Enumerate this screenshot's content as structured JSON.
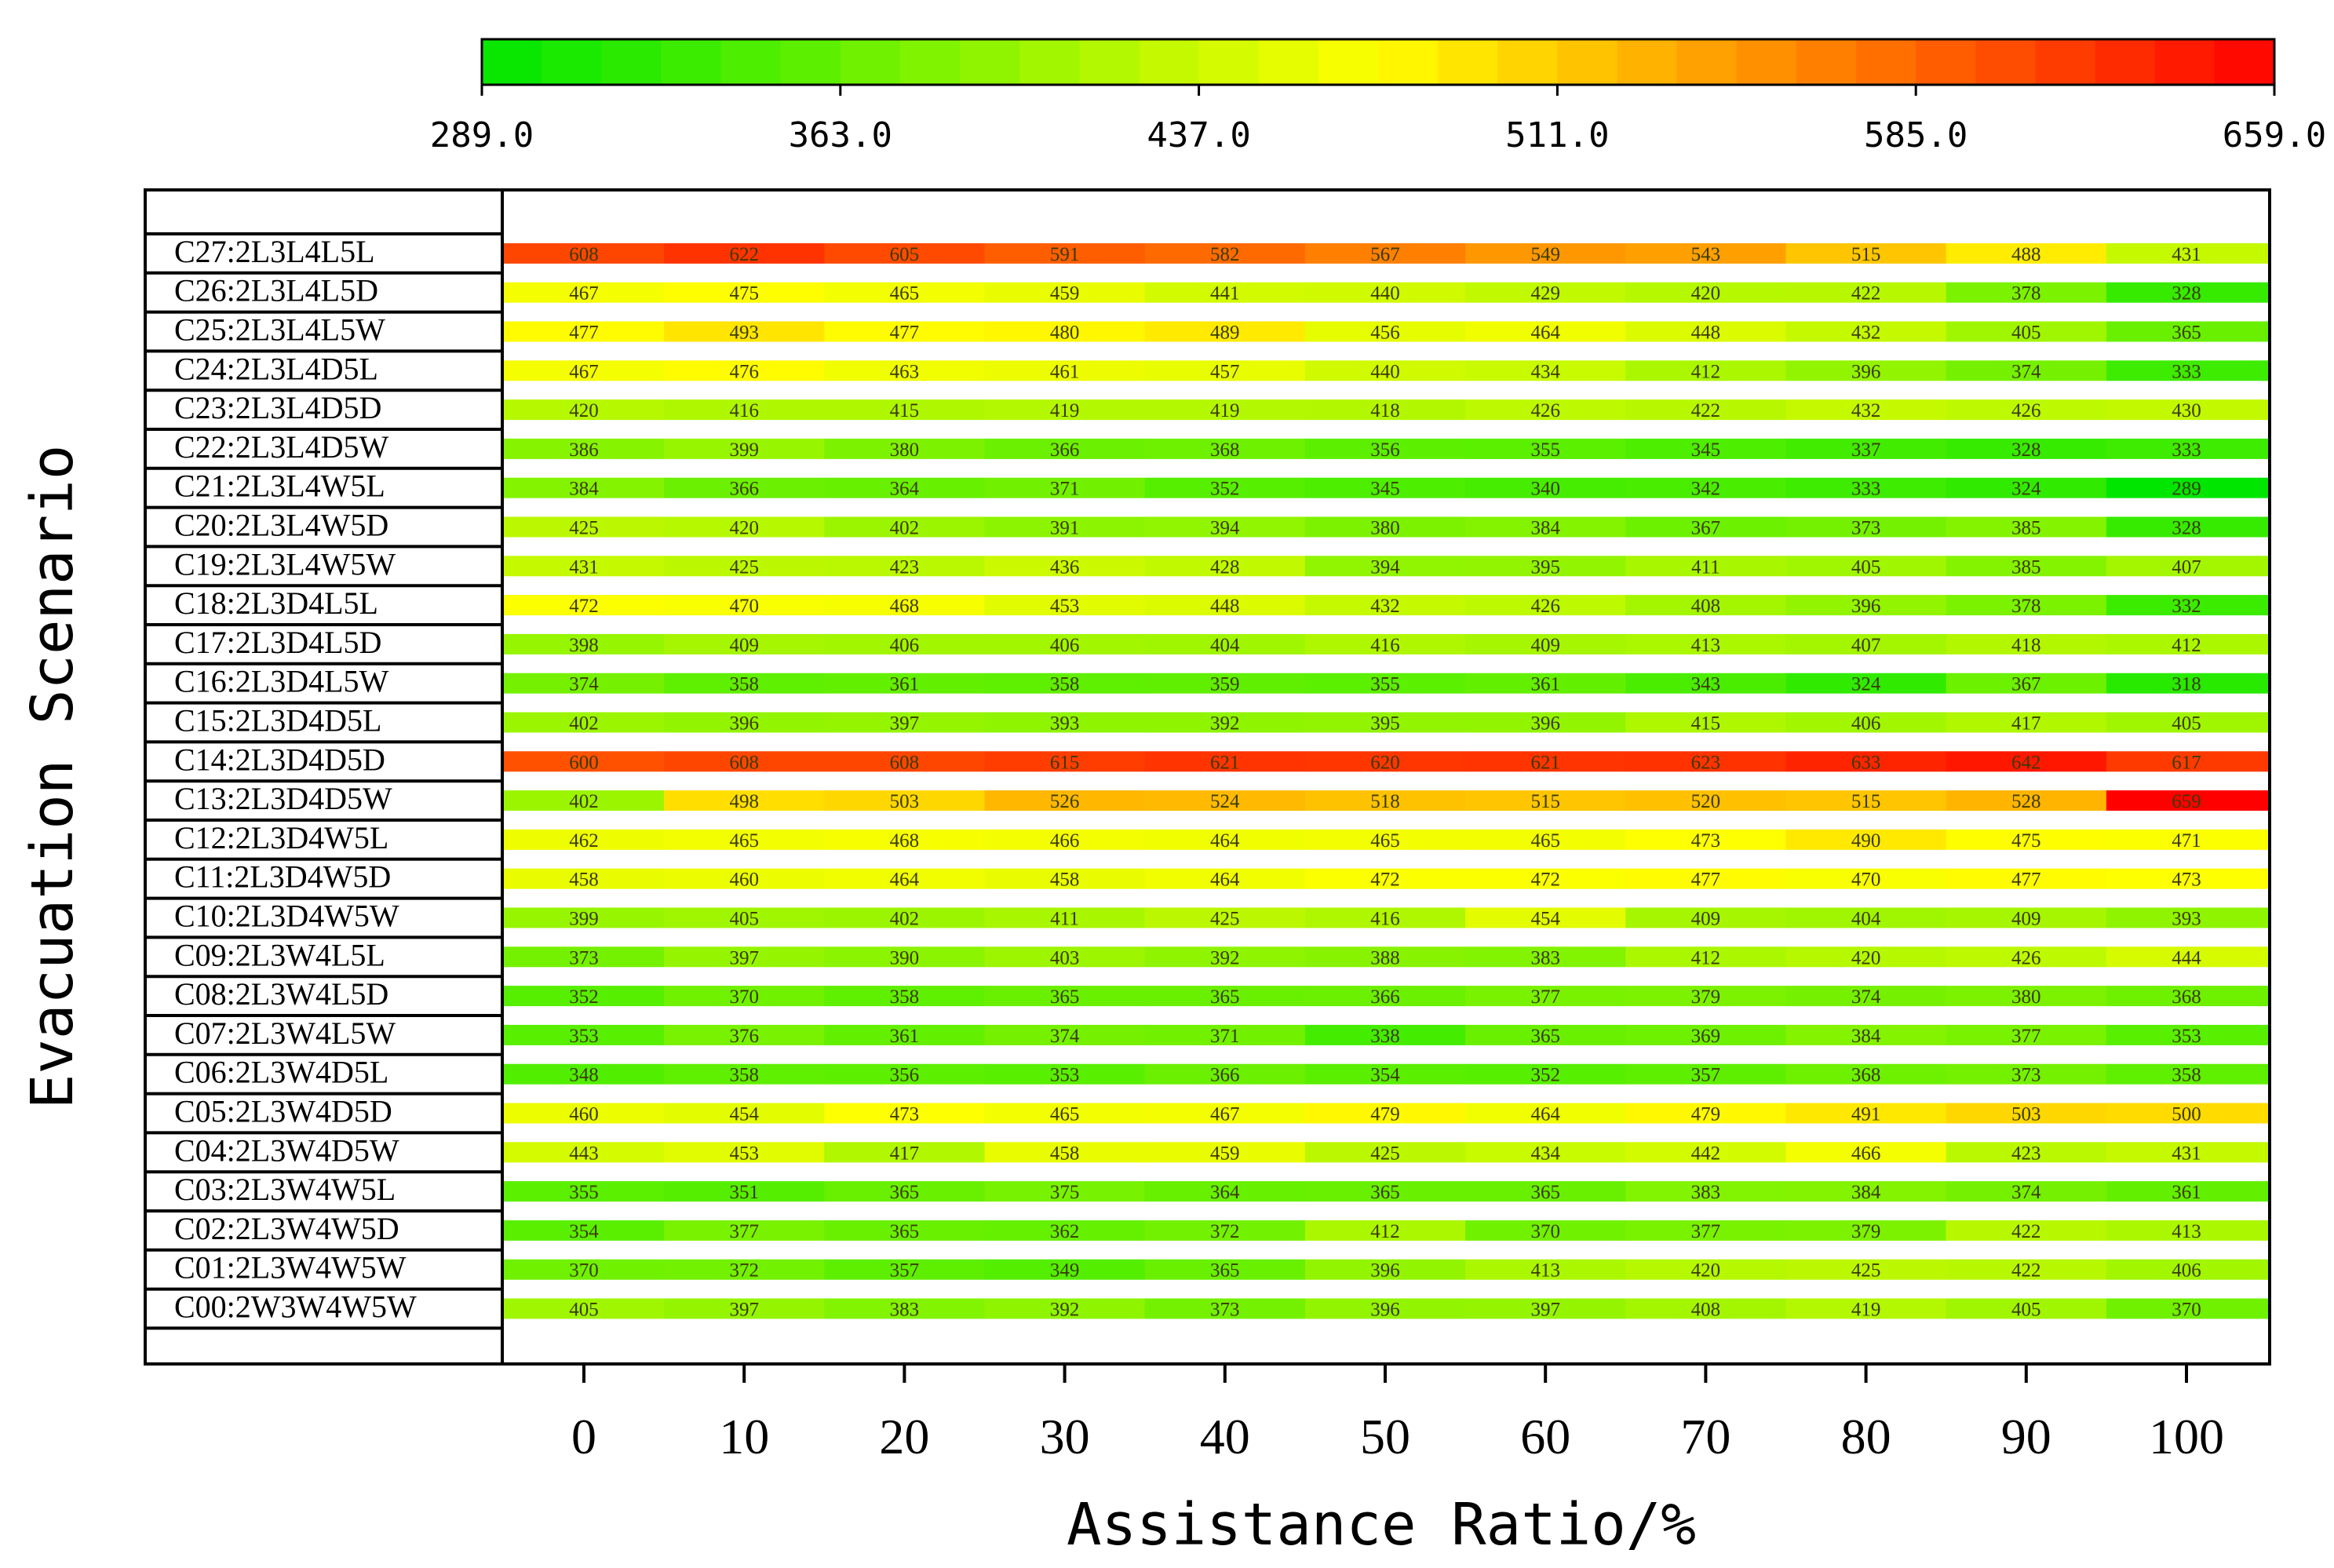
{
  "chart_data": {
    "type": "heatmap",
    "xlabel": "Assistance Ratio/%",
    "ylabel": "Evacuation Scenario",
    "x": [
      0,
      10,
      20,
      30,
      40,
      50,
      60,
      70,
      80,
      90,
      100
    ],
    "colorbar": {
      "min": 289.0,
      "max": 659.0,
      "ticks": [
        "289.0",
        "363.0",
        "437.0",
        "511.0",
        "585.0",
        "659.0"
      ],
      "colors": [
        "#00e600",
        "#ffff00",
        "#ff0000"
      ]
    },
    "rows": [
      {
        "label": "C27:2L3L4L5L",
        "values": [
          608,
          622,
          605,
          591,
          582,
          567,
          549,
          543,
          515,
          488,
          431
        ]
      },
      {
        "label": "C26:2L3L4L5D",
        "values": [
          467,
          475,
          465,
          459,
          441,
          440,
          429,
          420,
          422,
          378,
          328
        ]
      },
      {
        "label": "C25:2L3L4L5W",
        "values": [
          477,
          493,
          477,
          480,
          489,
          456,
          464,
          448,
          432,
          405,
          365
        ]
      },
      {
        "label": "C24:2L3L4D5L",
        "values": [
          467,
          476,
          463,
          461,
          457,
          440,
          434,
          412,
          396,
          374,
          333
        ]
      },
      {
        "label": "C23:2L3L4D5D",
        "values": [
          420,
          416,
          415,
          419,
          419,
          418,
          426,
          422,
          432,
          426,
          430
        ]
      },
      {
        "label": "C22:2L3L4D5W",
        "values": [
          386,
          399,
          380,
          366,
          368,
          356,
          355,
          345,
          337,
          328,
          333
        ]
      },
      {
        "label": "C21:2L3L4W5L",
        "values": [
          384,
          366,
          364,
          371,
          352,
          345,
          340,
          342,
          333,
          324,
          289
        ]
      },
      {
        "label": "C20:2L3L4W5D",
        "values": [
          425,
          420,
          402,
          391,
          394,
          380,
          384,
          367,
          373,
          385,
          328
        ]
      },
      {
        "label": "C19:2L3L4W5W",
        "values": [
          431,
          425,
          423,
          436,
          428,
          394,
          395,
          411,
          405,
          385,
          407
        ]
      },
      {
        "label": "C18:2L3D4L5L",
        "values": [
          472,
          470,
          468,
          453,
          448,
          432,
          426,
          408,
          396,
          378,
          332
        ]
      },
      {
        "label": "C17:2L3D4L5D",
        "values": [
          398,
          409,
          406,
          406,
          404,
          416,
          409,
          413,
          407,
          418,
          412
        ]
      },
      {
        "label": "C16:2L3D4L5W",
        "values": [
          374,
          358,
          361,
          358,
          359,
          355,
          361,
          343,
          324,
          367,
          318
        ]
      },
      {
        "label": "C15:2L3D4D5L",
        "values": [
          402,
          396,
          397,
          393,
          392,
          395,
          396,
          415,
          406,
          417,
          405
        ]
      },
      {
        "label": "C14:2L3D4D5D",
        "values": [
          600,
          608,
          608,
          615,
          621,
          620,
          621,
          623,
          633,
          642,
          617
        ]
      },
      {
        "label": "C13:2L3D4D5W",
        "values": [
          402,
          498,
          503,
          526,
          524,
          518,
          515,
          520,
          515,
          528,
          659
        ]
      },
      {
        "label": "C12:2L3D4W5L",
        "values": [
          462,
          465,
          468,
          466,
          464,
          465,
          465,
          473,
          490,
          475,
          471
        ]
      },
      {
        "label": "C11:2L3D4W5D",
        "values": [
          458,
          460,
          464,
          458,
          464,
          472,
          472,
          477,
          470,
          477,
          473
        ]
      },
      {
        "label": "C10:2L3D4W5W",
        "values": [
          399,
          405,
          402,
          411,
          425,
          416,
          454,
          409,
          404,
          409,
          393
        ]
      },
      {
        "label": "C09:2L3W4L5L",
        "values": [
          373,
          397,
          390,
          403,
          392,
          388,
          383,
          412,
          420,
          426,
          444
        ]
      },
      {
        "label": "C08:2L3W4L5D",
        "values": [
          352,
          370,
          358,
          365,
          365,
          366,
          377,
          379,
          374,
          380,
          368
        ]
      },
      {
        "label": "C07:2L3W4L5W",
        "values": [
          353,
          376,
          361,
          374,
          371,
          338,
          365,
          369,
          384,
          377,
          353
        ]
      },
      {
        "label": "C06:2L3W4D5L",
        "values": [
          348,
          358,
          356,
          353,
          366,
          354,
          352,
          357,
          368,
          373,
          358
        ]
      },
      {
        "label": "C05:2L3W4D5D",
        "values": [
          460,
          454,
          473,
          465,
          467,
          479,
          464,
          479,
          491,
          503,
          500
        ]
      },
      {
        "label": "C04:2L3W4D5W",
        "values": [
          443,
          453,
          417,
          458,
          459,
          425,
          434,
          442,
          466,
          423,
          431
        ]
      },
      {
        "label": "C03:2L3W4W5L",
        "values": [
          355,
          351,
          365,
          375,
          364,
          365,
          365,
          383,
          384,
          374,
          361
        ]
      },
      {
        "label": "C02:2L3W4W5D",
        "values": [
          354,
          377,
          365,
          362,
          372,
          412,
          370,
          377,
          379,
          422,
          413
        ]
      },
      {
        "label": "C01:2L3W4W5W",
        "values": [
          370,
          372,
          357,
          349,
          365,
          396,
          413,
          420,
          425,
          422,
          406
        ]
      },
      {
        "label": "C00:2W3W4W5W",
        "values": [
          405,
          397,
          383,
          392,
          373,
          396,
          397,
          408,
          419,
          405,
          370
        ]
      }
    ]
  }
}
